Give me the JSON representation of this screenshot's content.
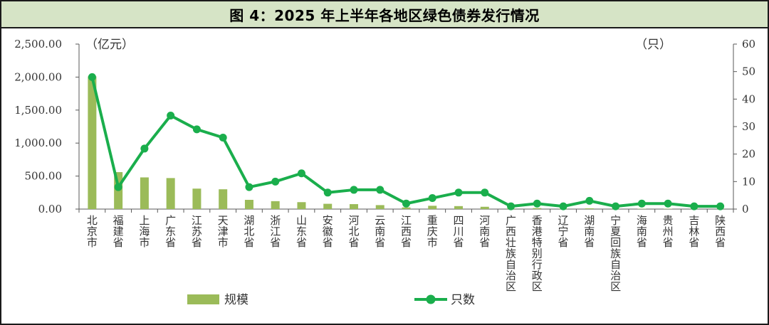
{
  "title": "图 4：2025 年上半年各地区绿色债券发行情况",
  "colors": {
    "bar": "#9bbb59",
    "line": "#1aae4c",
    "title_bg": "#d6e4c6"
  },
  "chart_data": {
    "type": "bar+line",
    "categories": [
      "北京市",
      "福建省",
      "上海市",
      "广东省",
      "江苏省",
      "天津市",
      "湖北省",
      "浙江省",
      "山东省",
      "安徽省",
      "河北省",
      "云南省",
      "江西省",
      "重庆市",
      "四川省",
      "河南省",
      "广西壮族自治区",
      "香港特别行政区",
      "辽宁省",
      "湖南省",
      "宁夏回族自治区",
      "海南省",
      "贵州省",
      "吉林省",
      "陕西省"
    ],
    "series": [
      {
        "name": "规模",
        "type": "bar",
        "axis": "left",
        "values": [
          2010,
          560,
          480,
          470,
          310,
          300,
          140,
          120,
          105,
          80,
          75,
          60,
          25,
          50,
          45,
          35,
          8,
          15,
          6,
          12,
          4,
          5,
          5,
          3,
          3
        ]
      },
      {
        "name": "只数",
        "type": "line",
        "axis": "right",
        "values": [
          48,
          8,
          22,
          34,
          29,
          26,
          8,
          10,
          13,
          6,
          7,
          7,
          2,
          4,
          6,
          6,
          1,
          2,
          1,
          3,
          1,
          2,
          2,
          1,
          1
        ]
      }
    ],
    "y_left": {
      "unit_label": "（亿元）",
      "ylim": [
        0,
        2500
      ],
      "ticks": [
        "0.00",
        "500.00",
        "1,000.00",
        "1,500.00",
        "2,000.00",
        "2,500.00"
      ]
    },
    "y_right": {
      "unit_label": "（只）",
      "ylim": [
        0,
        60
      ],
      "ticks": [
        "0",
        "10",
        "20",
        "30",
        "40",
        "50",
        "60"
      ]
    },
    "grid": false,
    "legend": "bottom"
  }
}
